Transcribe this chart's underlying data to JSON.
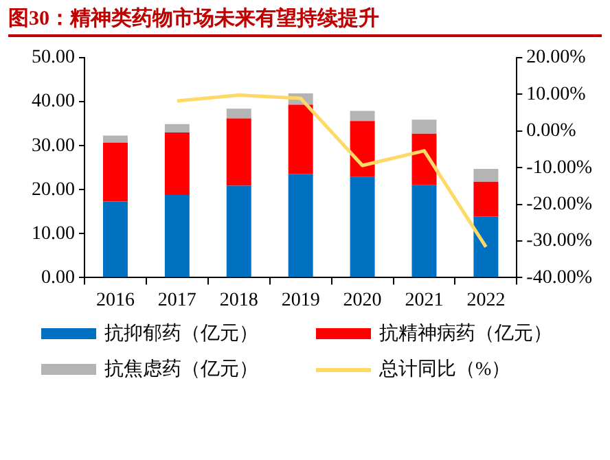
{
  "chart_data": {
    "type": "bar",
    "title": "图30：精神类药物市场未来有望持续提升",
    "stacked": true,
    "categories": [
      "2016",
      "2017",
      "2018",
      "2019",
      "2020",
      "2021",
      "2022"
    ],
    "series": [
      {
        "name": "抗抑郁药（亿元）",
        "color": "#0070c0",
        "values": [
          17.3,
          18.8,
          20.9,
          23.6,
          22.9,
          21.0,
          13.9
        ]
      },
      {
        "name": "抗精神病药（亿元）",
        "color": "#ff0000",
        "values": [
          13.4,
          14.2,
          15.3,
          15.7,
          12.7,
          11.7,
          7.9
        ]
      },
      {
        "name": "抗焦虑药（亿元）",
        "color": "#b4b4b4",
        "values": [
          1.6,
          1.9,
          2.2,
          2.6,
          2.3,
          3.2,
          2.9
        ]
      },
      {
        "name": "总计同比（%）",
        "type": "line",
        "axis": "y2",
        "color": "#ffd966",
        "values": [
          null,
          8.2,
          9.8,
          8.9,
          -9.4,
          -5.4,
          -31.6
        ]
      }
    ],
    "ylim": [
      0,
      50
    ],
    "yticks": [
      {
        "value": 0,
        "label": "0.00"
      },
      {
        "value": 10,
        "label": "10.00"
      },
      {
        "value": 20,
        "label": "20.00"
      },
      {
        "value": 30,
        "label": "30.00"
      },
      {
        "value": 40,
        "label": "40.00"
      },
      {
        "value": 50,
        "label": "50.00"
      }
    ],
    "y2lim": [
      -40,
      20
    ],
    "y2ticks": [
      {
        "value": -40,
        "label": "-40.00%"
      },
      {
        "value": -30,
        "label": "-30.00%"
      },
      {
        "value": -20,
        "label": "-20.00%"
      },
      {
        "value": -10,
        "label": "-10.00%"
      },
      {
        "value": 0,
        "label": "0.00%"
      },
      {
        "value": 10,
        "label": "10.00%"
      },
      {
        "value": 20,
        "label": "20.00%"
      }
    ],
    "grid": false,
    "legend": "bottom",
    "marker": "none"
  }
}
